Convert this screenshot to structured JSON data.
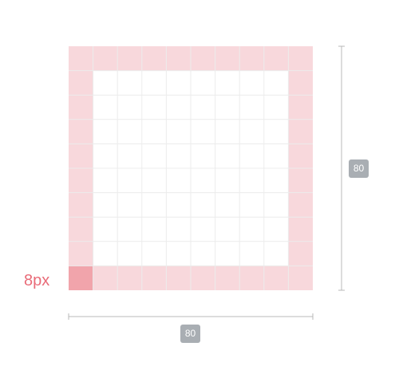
{
  "grid": {
    "columns": 10,
    "rows": 10,
    "border_cells": 1
  },
  "unit_label": "8px",
  "dimensions": {
    "width_label": "80",
    "height_label": "80"
  },
  "colors": {
    "border_fill": "#f8d8dc",
    "unit_cell_fill": "#f1a4ab",
    "grid_line": "#ececec",
    "unit_label_text": "#e96b78",
    "dimension_line": "#b8b8b8",
    "badge_fill": "#a9aeb3"
  }
}
